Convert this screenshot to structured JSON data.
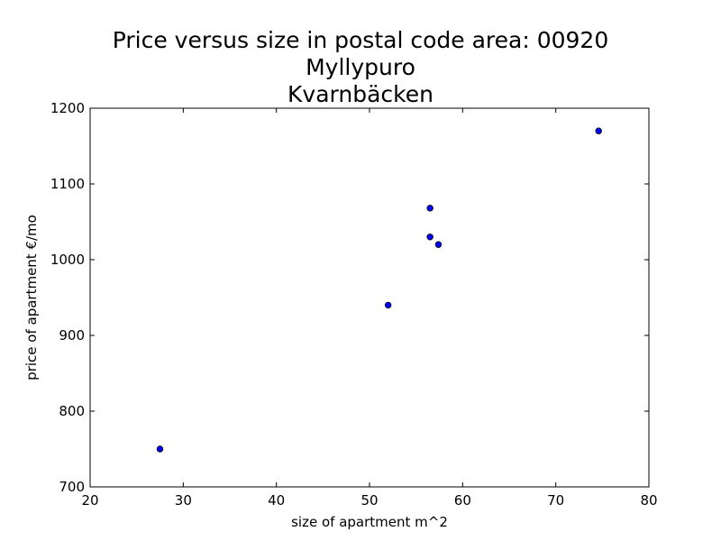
{
  "chart_data": {
    "type": "scatter",
    "title": [
      "Price versus size in postal code area: 00920",
      "Myllypuro",
      "Kvarnbäcken"
    ],
    "xlabel": "size of apartment m^2",
    "ylabel": "price of apartment €/mo",
    "xlim": [
      20,
      80
    ],
    "ylim": [
      700,
      1200
    ],
    "xticks": [
      20,
      30,
      40,
      50,
      60,
      70,
      80
    ],
    "yticks": [
      700,
      800,
      900,
      1000,
      1100,
      1200
    ],
    "grid": false,
    "marker_color": "#0000ff",
    "series": [
      {
        "points": [
          {
            "x": 27.5,
            "y": 750
          },
          {
            "x": 52.0,
            "y": 940
          },
          {
            "x": 56.5,
            "y": 1030
          },
          {
            "x": 56.5,
            "y": 1068
          },
          {
            "x": 57.4,
            "y": 1020
          },
          {
            "x": 74.6,
            "y": 1170
          }
        ]
      }
    ]
  }
}
